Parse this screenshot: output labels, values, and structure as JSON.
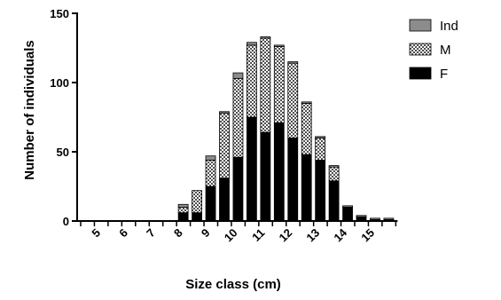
{
  "chart_data": {
    "type": "bar",
    "stacked": true,
    "xlabel": "Size class (cm)",
    "ylabel": "Number of individuals",
    "ylim": [
      0,
      150
    ],
    "yticks": [
      0,
      50,
      100,
      150
    ],
    "legend_position": "top-right",
    "categories": [
      "4.5",
      "5",
      "5.5",
      "6",
      "6.5",
      "7",
      "7.5",
      "8",
      "8.5",
      "9",
      "9.5",
      "10",
      "10.5",
      "11",
      "11.5",
      "12",
      "12.5",
      "13",
      "13.5",
      "14",
      "14.5",
      "15",
      "15.5"
    ],
    "x_tick_labels": [
      "5",
      "6",
      "7",
      "8",
      "9",
      "10",
      "11",
      "12",
      "13",
      "14",
      "15"
    ],
    "series": [
      {
        "name": "F",
        "color": "#000000",
        "pattern": "solid",
        "values": [
          0,
          0,
          0,
          0,
          0,
          0,
          0,
          6,
          6,
          25,
          31,
          46,
          75,
          64,
          71,
          60,
          48,
          44,
          29,
          10,
          3,
          1,
          1
        ]
      },
      {
        "name": "M",
        "color": "#6e6e6e",
        "pattern": "checker",
        "values": [
          0,
          0,
          0,
          0,
          0,
          0,
          0,
          4,
          16,
          19,
          47,
          57,
          52,
          68,
          55,
          54,
          37,
          16,
          10,
          0,
          0,
          0,
          0
        ]
      },
      {
        "name": "Ind",
        "color": "#8c8c8c",
        "pattern": "solid",
        "values": [
          0,
          0,
          0,
          0,
          0,
          0,
          0,
          2,
          0,
          3,
          1,
          4,
          2,
          1,
          1,
          1,
          1,
          1,
          1,
          1,
          1,
          1,
          1
        ]
      }
    ],
    "legend_order": [
      "Ind",
      "M",
      "F"
    ]
  }
}
